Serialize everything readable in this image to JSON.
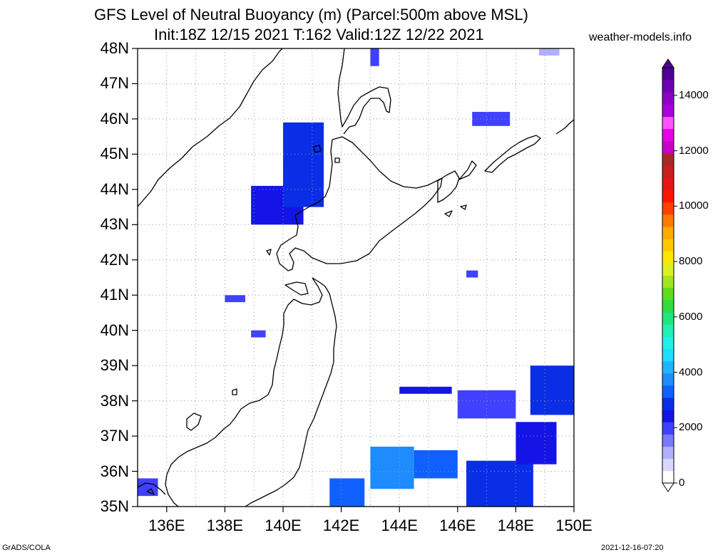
{
  "title_line1": "GFS Level of Neutral Buoyancy (m) (Parcel:500m above MSL)",
  "title_line2": "Init:18Z 12/15 2021 T:162 Valid:12Z 12/22 2021",
  "website": "weather-models.info",
  "footer_left": "GrADS/COLA",
  "footer_right": "2021-12-16-07:20",
  "lat_labels": [
    "48N",
    "47N",
    "46N",
    "45N",
    "44N",
    "43N",
    "42N",
    "41N",
    "40N",
    "39N",
    "38N",
    "37N",
    "36N",
    "35N"
  ],
  "lon_labels": [
    "136E",
    "138E",
    "140E",
    "142E",
    "144E",
    "146E",
    "148E",
    "150E"
  ],
  "colorbar": {
    "labels": [
      "0",
      "2000",
      "4000",
      "6000",
      "8000",
      "10000",
      "12000",
      "14000"
    ],
    "colors": [
      "#ffffff",
      "#d8d8ff",
      "#b0b0ff",
      "#7878ff",
      "#4040ff",
      "#1414e6",
      "#0a2ee6",
      "#1060ff",
      "#1e8cff",
      "#20b4ff",
      "#20dcff",
      "#20f0e6",
      "#20f0b4",
      "#20e682",
      "#30dc40",
      "#60dc20",
      "#a0e620",
      "#dcf020",
      "#ffe600",
      "#ffc800",
      "#ffaa00",
      "#ff7800",
      "#ff4000",
      "#ff1400",
      "#e61414",
      "#c81e1e",
      "#a82828",
      "#c800c8",
      "#e600e6",
      "#ff50ff",
      "#aa00dc",
      "#8c00c8",
      "#6e00b4",
      "#500096"
    ]
  },
  "chart_data": {
    "type": "heatmap",
    "title": "GFS Level of Neutral Buoyancy (m) (Parcel:500m above MSL)",
    "subtitle": "Init:18Z 12/15 2021 T:162 Valid:12Z 12/22 2021",
    "units": "m",
    "lon_range": [
      135,
      150
    ],
    "lat_range": [
      35,
      48
    ],
    "grid": true,
    "legend": "right",
    "regions": [
      {
        "lon": [
          141.6,
          142.8
        ],
        "lat": [
          35.0,
          35.8
        ],
        "value": 3000
      },
      {
        "lon": [
          143.0,
          144.5
        ],
        "lat": [
          35.5,
          36.7
        ],
        "value": 3500
      },
      {
        "lon": [
          144.5,
          146.0
        ],
        "lat": [
          35.8,
          36.6
        ],
        "value": 3200
      },
      {
        "lon": [
          146.3,
          148.6
        ],
        "lat": [
          35.0,
          36.3
        ],
        "value": 2600
      },
      {
        "lon": [
          148.0,
          149.4
        ],
        "lat": [
          36.2,
          37.4
        ],
        "value": 2300
      },
      {
        "lon": [
          144.0,
          145.8
        ],
        "lat": [
          38.2,
          38.4
        ],
        "value": 2100
      },
      {
        "lon": [
          146.0,
          148.0
        ],
        "lat": [
          37.5,
          38.3
        ],
        "value": 1900
      },
      {
        "lon": [
          148.5,
          150.0
        ],
        "lat": [
          37.6,
          39.0
        ],
        "value": 2600
      },
      {
        "lon": [
          138.9,
          140.7
        ],
        "lat": [
          43.0,
          44.1
        ],
        "value": 2200
      },
      {
        "lon": [
          140.0,
          141.4
        ],
        "lat": [
          43.5,
          45.9
        ],
        "value": 2800
      },
      {
        "lon": [
          143.0,
          143.3
        ],
        "lat": [
          47.5,
          48.0
        ],
        "value": 1800
      },
      {
        "lon": [
          146.5,
          147.8
        ],
        "lat": [
          45.8,
          46.2
        ],
        "value": 1700
      },
      {
        "lon": [
          146.3,
          146.7
        ],
        "lat": [
          41.5,
          41.7
        ],
        "value": 1700
      },
      {
        "lon": [
          138.0,
          138.7
        ],
        "lat": [
          40.8,
          41.0
        ],
        "value": 1900
      },
      {
        "lon": [
          138.9,
          139.4
        ],
        "lat": [
          39.8,
          40.0
        ],
        "value": 1800
      },
      {
        "lon": [
          135.0,
          135.7
        ],
        "lat": [
          35.3,
          35.8
        ],
        "value": 1600
      },
      {
        "lon": [
          148.8,
          149.5
        ],
        "lat": [
          47.8,
          48.0
        ],
        "value": 1000
      }
    ]
  }
}
